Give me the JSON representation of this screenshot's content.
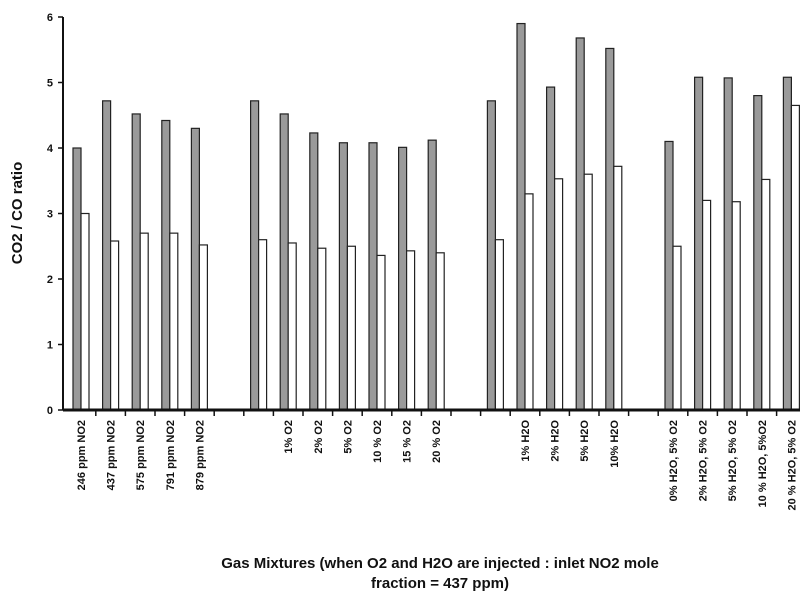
{
  "chart_data": {
    "type": "bar",
    "ylabel": "CO2 / CO ratio",
    "xlabel": [
      "Gas Mixtures   (when O2 and H2O are injected : inlet NO2 mole",
      "fraction = 437 ppm)"
    ],
    "categories": [
      "246 ppm NO2",
      "437 ppm NO2",
      "575 ppm NO2",
      "791 ppm NO2",
      "879 ppm NO2",
      null,
      null,
      "1% O2",
      "2% O2",
      "5% O2",
      "10 % O2",
      "15 % O2",
      "20 % O2",
      null,
      null,
      "1% H2O",
      "2% H2O",
      "5% H2O",
      "10% H2O",
      null,
      "0% H2O, 5% O2",
      "2% H2O, 5% O2",
      "5% H2O, 5% O2",
      "10 % H2O, 5%O2",
      "20 % H2O, 5% O2"
    ],
    "series": [
      {
        "color": "#9a9a9a",
        "values": [
          4.0,
          4.72,
          4.52,
          4.42,
          4.3,
          null,
          4.72,
          4.52,
          4.23,
          4.08,
          4.08,
          4.01,
          4.12,
          null,
          4.72,
          5.9,
          4.93,
          5.68,
          5.52,
          null,
          4.1,
          5.08,
          5.07,
          4.8,
          5.08
        ]
      },
      {
        "color": "#ffffff",
        "values": [
          3.0,
          2.58,
          2.7,
          2.7,
          2.52,
          null,
          2.6,
          2.55,
          2.47,
          2.5,
          2.36,
          2.43,
          2.4,
          null,
          2.6,
          3.3,
          3.53,
          3.6,
          3.72,
          null,
          2.5,
          3.2,
          3.18,
          3.52,
          4.65
        ]
      }
    ],
    "ylim": [
      0,
      6
    ],
    "yticks": [
      0,
      1,
      2,
      3,
      4,
      5,
      6
    ]
  }
}
